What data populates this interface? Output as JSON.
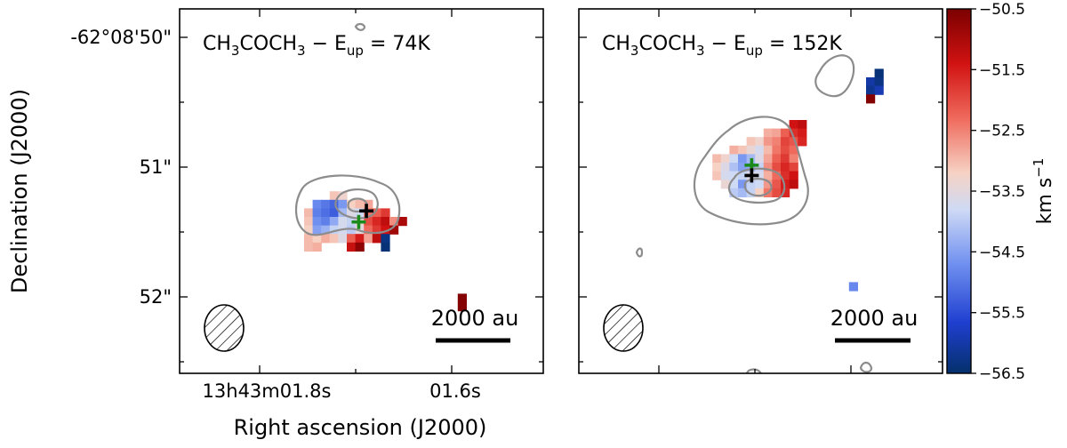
{
  "chart_data": {
    "type": "heatmap",
    "description_free": true,
    "xlabel": "Right ascension (J2000)",
    "ylabel": "Declination (J2000)",
    "x_tick_labels": [
      "13h43m01.8s",
      "01.6s"
    ],
    "y_tick_labels": [
      "-62°08'50\"",
      "51\"",
      "52\""
    ],
    "colorbar": {
      "label": "km s",
      "label_exponent": "−1",
      "range": [
        -56.5,
        -50.5
      ],
      "ticks": [
        -50.5,
        -51.5,
        -52.5,
        -53.5,
        -54.5,
        -55.5,
        -56.5
      ],
      "tick_labels": [
        "−50.5",
        "−51.5",
        "−52.5",
        "−53.5",
        "−54.5",
        "−55.5",
        "−56.5"
      ],
      "colors": [
        "#05306b",
        "#1f3fd0",
        "#7090f0",
        "#cfdaf5",
        "#f6d2c4",
        "#ef6a5c",
        "#d11212",
        "#7b0000"
      ]
    },
    "panels": [
      {
        "molecule": "CH",
        "sub1": "3",
        "mid": "COCH",
        "sub2": "3",
        "dash": " − E",
        "sub_e": "up",
        "energy": " = 74K",
        "scale_bar_label": "2000 au",
        "pixels": [
          {
            "c": 3,
            "r": 2,
            "v": -53.1
          },
          {
            "c": 4,
            "r": 2,
            "v": -53.3
          },
          {
            "c": 1,
            "r": 3,
            "v": -54.8
          },
          {
            "c": 2,
            "r": 3,
            "v": -55.0
          },
          {
            "c": 3,
            "r": 3,
            "v": -55.2
          },
          {
            "c": 4,
            "r": 3,
            "v": -54.6
          },
          {
            "c": 5,
            "r": 3,
            "v": -53.2
          },
          {
            "c": 6,
            "r": 3,
            "v": -53.0
          },
          {
            "c": 7,
            "r": 3,
            "v": -52.8
          },
          {
            "c": 0,
            "r": 4,
            "v": -53.0
          },
          {
            "c": 1,
            "r": 4,
            "v": -54.9
          },
          {
            "c": 2,
            "r": 4,
            "v": -55.1
          },
          {
            "c": 3,
            "r": 4,
            "v": -55.3
          },
          {
            "c": 4,
            "r": 4,
            "v": -54.2
          },
          {
            "c": 5,
            "r": 4,
            "v": -53.6
          },
          {
            "c": 6,
            "r": 4,
            "v": -53.8
          },
          {
            "c": 7,
            "r": 4,
            "v": -52.4
          },
          {
            "c": 8,
            "r": 4,
            "v": -52.2
          },
          {
            "c": 9,
            "r": 4,
            "v": -51.8
          },
          {
            "c": 0,
            "r": 5,
            "v": -53.1
          },
          {
            "c": 1,
            "r": 5,
            "v": -54.7
          },
          {
            "c": 2,
            "r": 5,
            "v": -54.9
          },
          {
            "c": 3,
            "r": 5,
            "v": -54.4
          },
          {
            "c": 4,
            "r": 5,
            "v": -53.7
          },
          {
            "c": 5,
            "r": 5,
            "v": -53.9
          },
          {
            "c": 6,
            "r": 5,
            "v": -53.4
          },
          {
            "c": 7,
            "r": 5,
            "v": -52.0
          },
          {
            "c": 8,
            "r": 5,
            "v": -51.6
          },
          {
            "c": 9,
            "r": 5,
            "v": -51.2
          },
          {
            "c": 10,
            "r": 5,
            "v": -52.6
          },
          {
            "c": 11,
            "r": 5,
            "v": -51.0
          },
          {
            "c": 0,
            "r": 6,
            "v": -53.2
          },
          {
            "c": 1,
            "r": 6,
            "v": -54.5
          },
          {
            "c": 2,
            "r": 6,
            "v": -54.3
          },
          {
            "c": 3,
            "r": 6,
            "v": -53.9
          },
          {
            "c": 4,
            "r": 6,
            "v": -53.7
          },
          {
            "c": 5,
            "r": 6,
            "v": -54.0
          },
          {
            "c": 6,
            "r": 6,
            "v": -53.5
          },
          {
            "c": 7,
            "r": 6,
            "v": -52.3
          },
          {
            "c": 8,
            "r": 6,
            "v": -51.8
          },
          {
            "c": 9,
            "r": 6,
            "v": -51.4
          },
          {
            "c": 10,
            "r": 6,
            "v": -50.9
          },
          {
            "c": 0,
            "r": 7,
            "v": -53.0
          },
          {
            "c": 1,
            "r": 7,
            "v": -53.2
          },
          {
            "c": 2,
            "r": 7,
            "v": -52.9
          },
          {
            "c": 3,
            "r": 7,
            "v": -53.1
          },
          {
            "c": 4,
            "r": 7,
            "v": -53.6
          },
          {
            "c": 5,
            "r": 7,
            "v": -52.2
          },
          {
            "c": 6,
            "r": 7,
            "v": -51.5
          },
          {
            "c": 7,
            "r": 7,
            "v": -52.8
          },
          {
            "c": 8,
            "r": 7,
            "v": -51.2
          },
          {
            "c": 9,
            "r": 7,
            "v": -56.3
          },
          {
            "c": 0,
            "r": 8,
            "v": -53.0
          },
          {
            "c": 1,
            "r": 8,
            "v": -52.9
          },
          {
            "c": 5,
            "r": 8,
            "v": -51.3
          },
          {
            "c": 6,
            "r": 8,
            "v": -50.7
          },
          {
            "c": 9,
            "r": 8,
            "v": -56.4
          },
          {
            "c": 18,
            "r": 14,
            "v": -50.6
          },
          {
            "c": 18,
            "r": 15,
            "v": -50.6
          }
        ],
        "crosses": [
          {
            "name": "black",
            "c": 7.3,
            "r": 4.3
          },
          {
            "name": "green",
            "c": 6.4,
            "r": 5.6
          }
        ]
      },
      {
        "molecule": "CH",
        "sub1": "3",
        "mid": "COCH",
        "sub2": "3",
        "dash": " − E",
        "sub_e": "up",
        "energy": " = 152K",
        "scale_bar_label": "2000 au",
        "pixels": [
          {
            "c": 21,
            "r": -11,
            "v": -56.4
          },
          {
            "c": 20,
            "r": -10,
            "v": -56.0
          },
          {
            "c": 21,
            "r": -10,
            "v": -56.3
          },
          {
            "c": 20,
            "r": -9,
            "v": -56.2
          },
          {
            "c": 21,
            "r": -9,
            "v": -55.9
          },
          {
            "c": 20,
            "r": -8,
            "v": -50.6
          },
          {
            "c": 11,
            "r": -5,
            "v": -51.4
          },
          {
            "c": 12,
            "r": -5,
            "v": -51.2
          },
          {
            "c": 8,
            "r": -4,
            "v": -52.9
          },
          {
            "c": 9,
            "r": -4,
            "v": -52.8
          },
          {
            "c": 10,
            "r": -4,
            "v": -52.2
          },
          {
            "c": 11,
            "r": -4,
            "v": -51.7
          },
          {
            "c": 12,
            "r": -4,
            "v": -51.5
          },
          {
            "c": 6,
            "r": -3,
            "v": -53.1
          },
          {
            "c": 7,
            "r": -3,
            "v": -53.3
          },
          {
            "c": 8,
            "r": -3,
            "v": -52.7
          },
          {
            "c": 9,
            "r": -3,
            "v": -52.5
          },
          {
            "c": 10,
            "r": -3,
            "v": -51.9
          },
          {
            "c": 11,
            "r": -3,
            "v": -52.1
          },
          {
            "c": 12,
            "r": -3,
            "v": -51.6
          },
          {
            "c": 4,
            "r": -2,
            "v": -52.9
          },
          {
            "c": 5,
            "r": -2,
            "v": -53.1
          },
          {
            "c": 6,
            "r": -2,
            "v": -53.4
          },
          {
            "c": 7,
            "r": -2,
            "v": -53.7
          },
          {
            "c": 8,
            "r": -2,
            "v": -53.0
          },
          {
            "c": 9,
            "r": -2,
            "v": -52.4
          },
          {
            "c": 10,
            "r": -2,
            "v": -52.0
          },
          {
            "c": 11,
            "r": -2,
            "v": -52.3
          },
          {
            "c": 2,
            "r": -1,
            "v": -53.0
          },
          {
            "c": 3,
            "r": -1,
            "v": -53.3
          },
          {
            "c": 4,
            "r": -1,
            "v": -53.8
          },
          {
            "c": 5,
            "r": -1,
            "v": -54.6
          },
          {
            "c": 6,
            "r": -1,
            "v": -54.2
          },
          {
            "c": 7,
            "r": -1,
            "v": -53.6
          },
          {
            "c": 8,
            "r": -1,
            "v": -52.8
          },
          {
            "c": 9,
            "r": -1,
            "v": -52.2
          },
          {
            "c": 10,
            "r": -1,
            "v": -51.8
          },
          {
            "c": 11,
            "r": -1,
            "v": -52.5
          },
          {
            "c": 2,
            "r": 0,
            "v": -53.2
          },
          {
            "c": 3,
            "r": 0,
            "v": -53.6
          },
          {
            "c": 4,
            "r": 0,
            "v": -54.1
          },
          {
            "c": 5,
            "r": 0,
            "v": -54.5
          },
          {
            "c": 6,
            "r": 0,
            "v": -54.4
          },
          {
            "c": 7,
            "r": 0,
            "v": -53.9
          },
          {
            "c": 8,
            "r": 0,
            "v": -52.6
          },
          {
            "c": 9,
            "r": 0,
            "v": -52.0
          },
          {
            "c": 10,
            "r": 0,
            "v": -51.6
          },
          {
            "c": 11,
            "r": 0,
            "v": -51.9
          },
          {
            "c": 2,
            "r": 1,
            "v": -53.1
          },
          {
            "c": 3,
            "r": 1,
            "v": -53.7
          },
          {
            "c": 4,
            "r": 1,
            "v": -53.8
          },
          {
            "c": 5,
            "r": 1,
            "v": -53.9
          },
          {
            "c": 6,
            "r": 1,
            "v": -53.6
          },
          {
            "c": 7,
            "r": 1,
            "v": -53.7
          },
          {
            "c": 8,
            "r": 1,
            "v": -52.9
          },
          {
            "c": 9,
            "r": 1,
            "v": -52.3
          },
          {
            "c": 10,
            "r": 1,
            "v": -51.7
          },
          {
            "c": 11,
            "r": 1,
            "v": -51.4
          },
          {
            "c": 3,
            "r": 2,
            "v": -53.4
          },
          {
            "c": 4,
            "r": 2,
            "v": -53.8
          },
          {
            "c": 5,
            "r": 2,
            "v": -54.6
          },
          {
            "c": 6,
            "r": 2,
            "v": -53.9
          },
          {
            "c": 7,
            "r": 2,
            "v": -53.8
          },
          {
            "c": 8,
            "r": 2,
            "v": -52.7
          },
          {
            "c": 9,
            "r": 2,
            "v": -52.1
          },
          {
            "c": 10,
            "r": 2,
            "v": -51.5
          },
          {
            "c": 11,
            "r": 2,
            "v": -51.2
          },
          {
            "c": 4,
            "r": 3,
            "v": -54.0
          },
          {
            "c": 5,
            "r": 3,
            "v": -54.2
          },
          {
            "c": 6,
            "r": 3,
            "v": -53.9
          },
          {
            "c": 7,
            "r": 3,
            "v": -53.2
          },
          {
            "c": 8,
            "r": 3,
            "v": -52.4
          },
          {
            "c": 9,
            "r": 3,
            "v": -52.0
          },
          {
            "c": 10,
            "r": 3,
            "v": -51.6
          },
          {
            "c": 18,
            "r": 14,
            "v": -54.8
          }
        ],
        "crosses": [
          {
            "name": "green",
            "c": 6.6,
            "r": 0.3
          },
          {
            "name": "black",
            "c": 6.6,
            "r": 1.5
          }
        ]
      }
    ]
  }
}
